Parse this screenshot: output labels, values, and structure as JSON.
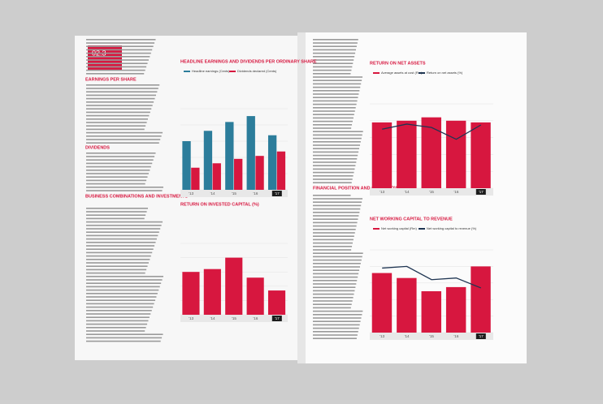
{
  "header": {
    "section": "02.3"
  },
  "headings": [
    "EARNINGS PER SHARE",
    "DIVIDENDS",
    "BUSINESS COMBINATIONS AND INVESTMENTS",
    "FINANCIAL POSITION AND CASH FLOW"
  ],
  "chart_data": [
    {
      "type": "bar",
      "title": "HEADLINE EARNINGS AND DIVIDENDS PER ORDINARY SHARE",
      "categories": [
        "'13",
        "'14",
        "'15",
        "'16",
        "'17"
      ],
      "series": [
        {
          "name": "Headline earnings (Cents)",
          "color": "#2c7d9b",
          "values": [
            66,
            80,
            92,
            100,
            74
          ]
        },
        {
          "name": "Dividends declared (Cents)",
          "color": "#d7173f",
          "values": [
            30,
            36,
            42,
            46,
            52
          ]
        }
      ],
      "ylim": [
        0,
        110
      ]
    },
    {
      "type": "bar",
      "title": "RETURN ON INVESTED CAPITAL (%)",
      "categories": [
        "'13",
        "'14",
        "'15",
        "'16",
        "'17"
      ],
      "series": [
        {
          "color": "#d7173f",
          "values": [
            60,
            64,
            80,
            52,
            34
          ]
        }
      ],
      "ylim": [
        0,
        100
      ]
    },
    {
      "type": "bar",
      "title": "RETURN ON NET ASSETS",
      "categories": [
        "'13",
        "'14",
        "'15",
        "'16",
        "'17"
      ],
      "series": [
        {
          "name": "Average assets at cost (Rm)",
          "color": "#d7173f",
          "values": [
            78,
            80,
            84,
            80,
            78
          ]
        },
        {
          "name": "Return on net assets (%)",
          "color": "#1f3552",
          "values": [
            70,
            76,
            72,
            58,
            75
          ],
          "axis": "y2"
        }
      ],
      "ylim": [
        0,
        100
      ],
      "y2lim": [
        0,
        100
      ]
    },
    {
      "type": "bar",
      "title": "NET WORKING CAPITAL TO REVENUE",
      "categories": [
        "'13",
        "'14",
        "'15",
        "'16",
        "'17"
      ],
      "series": [
        {
          "name": "Net working capital (Rm)",
          "color": "#d7173f",
          "values": [
            72,
            66,
            50,
            55,
            80
          ]
        },
        {
          "name": "Net working capital to revenue (%)",
          "color": "#1f3552",
          "values": [
            78,
            80,
            64,
            66,
            54
          ],
          "axis": "y2"
        }
      ],
      "ylim": [
        0,
        100
      ],
      "y2lim": [
        0,
        100
      ]
    }
  ]
}
